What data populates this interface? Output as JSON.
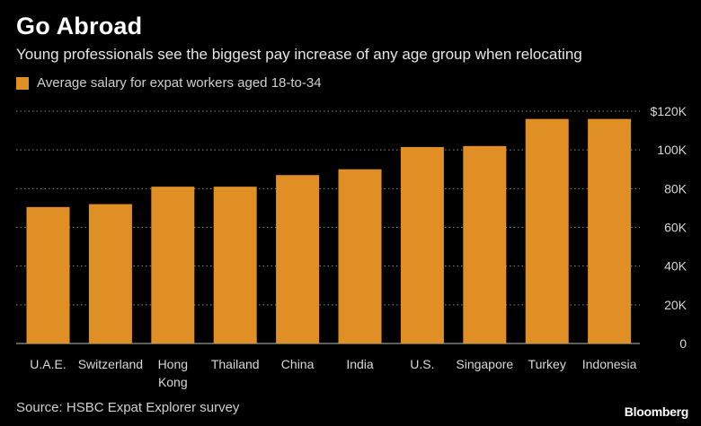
{
  "header": {
    "title": "Go Abroad",
    "subtitle": "Young professionals see the biggest pay increase of any age group when relocating"
  },
  "legend": {
    "label": "Average salary for expat workers aged 18-to-34"
  },
  "footer": {
    "source": "Source: HSBC Expat Explorer survey",
    "brand": "Bloomberg"
  },
  "colors": {
    "bar": "#e08f25",
    "grid": "#8a8a8a",
    "axis": "#bdbdbd",
    "text": "#d8d8d8",
    "background": "#000000"
  },
  "chart_data": {
    "type": "bar",
    "categories": [
      [
        "U.A.E."
      ],
      [
        "Switzerland"
      ],
      [
        "Hong",
        "Kong"
      ],
      [
        "Thailand"
      ],
      [
        "China"
      ],
      [
        "India"
      ],
      [
        "U.S."
      ],
      [
        "Singapore"
      ],
      [
        "Turkey"
      ],
      [
        "Indonesia"
      ]
    ],
    "series": [
      {
        "name": "Average salary for expat workers aged 18-to-34",
        "values": [
          70500,
          72000,
          81000,
          81000,
          87000,
          90000,
          101500,
          102000,
          116000,
          116000
        ]
      }
    ],
    "ylim": [
      0,
      120000
    ],
    "yticks": [
      0,
      20000,
      40000,
      60000,
      80000,
      100000,
      120000
    ],
    "ytick_labels": [
      "0",
      "20K",
      "40K",
      "60K",
      "80K",
      "100K",
      "$120K"
    ],
    "y_axis_position": "right",
    "grid": true
  }
}
